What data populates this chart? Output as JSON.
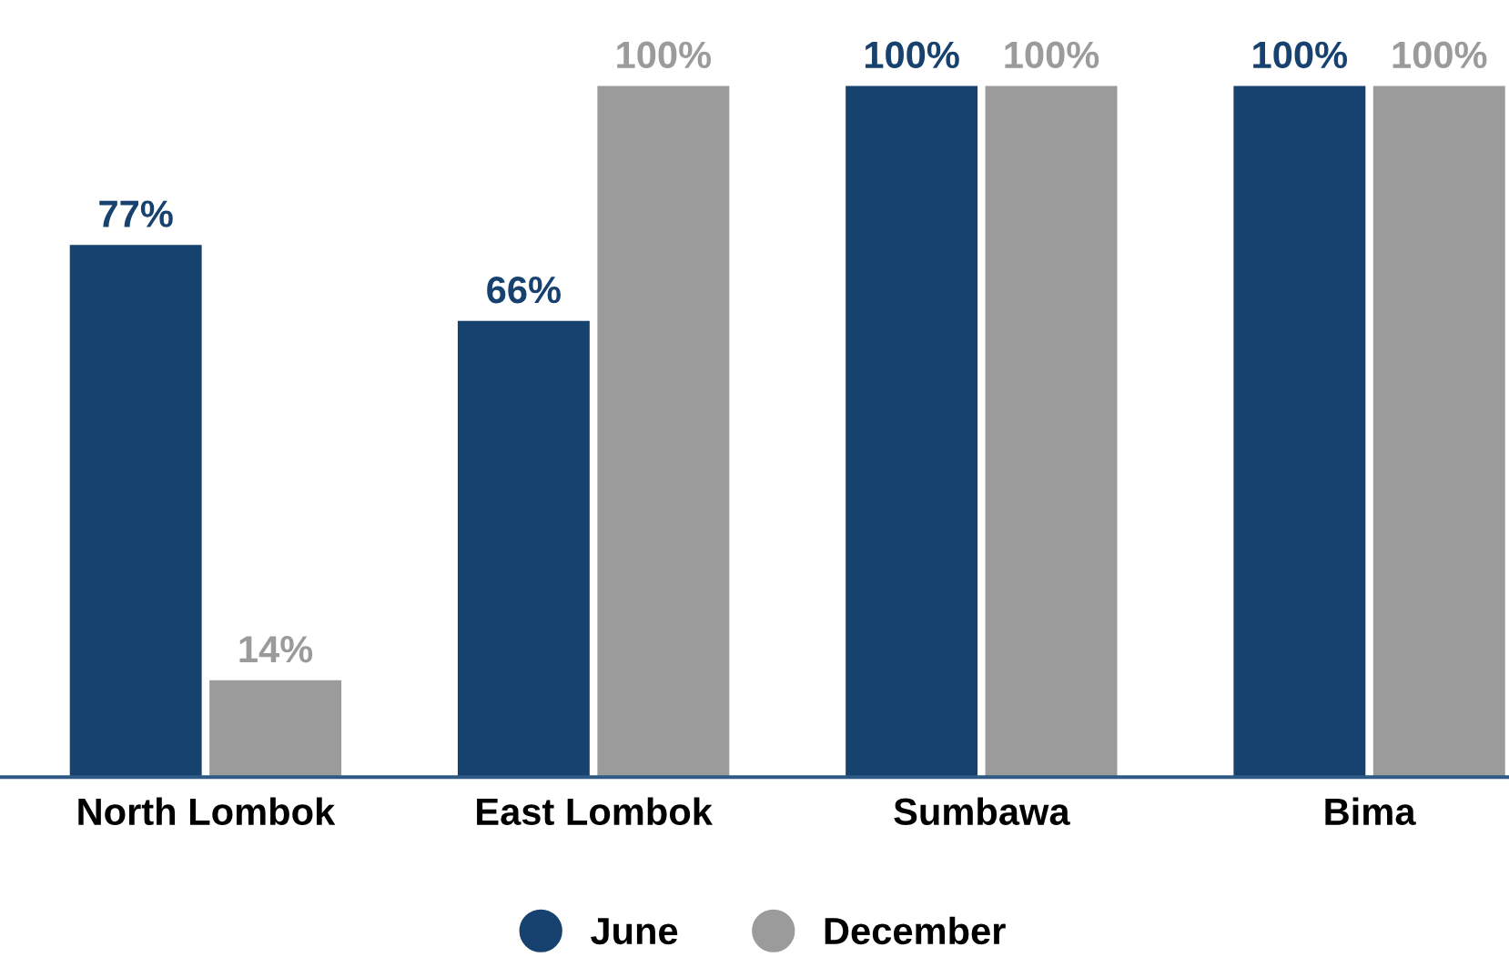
{
  "chart_data": {
    "type": "bar",
    "categories": [
      "North Lombok",
      "East Lombok",
      "Sumbawa",
      "Bima"
    ],
    "series": [
      {
        "name": "June",
        "color": "#17416f",
        "values": [
          77,
          66,
          100,
          100
        ],
        "value_labels": [
          "77%",
          "66%",
          "100%",
          "100%"
        ]
      },
      {
        "name": "December",
        "color": "#9b9b9b",
        "values": [
          14,
          100,
          100,
          100
        ],
        "value_labels": [
          "14%",
          "100%",
          "100%",
          "100%"
        ]
      }
    ],
    "grid": false,
    "legend": "bottom"
  }
}
